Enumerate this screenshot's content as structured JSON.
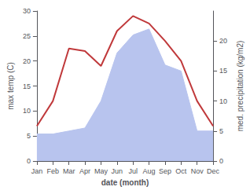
{
  "chart_data": {
    "type": "line",
    "xlabel": "date (month)",
    "ylabel": "max temp (C)",
    "y2label": "med. precipitation (kg/m2)",
    "categories": [
      "Jan",
      "Feb",
      "Mar",
      "Apr",
      "May",
      "Jun",
      "Jul",
      "Aug",
      "Sep",
      "Oct",
      "Nov",
      "Dec"
    ],
    "series": [
      {
        "type": "area",
        "color": "#b8c4ee",
        "axis": "y2",
        "values": [
          4.5,
          4.5,
          5,
          5.5,
          10,
          18,
          21,
          22,
          16,
          15,
          5,
          5
        ]
      },
      {
        "type": "line",
        "color": "#c0393b",
        "values": [
          7,
          12,
          22.5,
          22,
          19,
          26,
          29,
          27.5,
          24,
          20,
          12,
          7
        ]
      }
    ],
    "ylim": [
      0,
      30
    ],
    "yticks": [
      0,
      5,
      10,
      15,
      20,
      25,
      30
    ],
    "y2lim": [
      0,
      25
    ],
    "y2ticks": [
      0,
      5,
      10,
      15,
      20
    ],
    "grid": false
  }
}
